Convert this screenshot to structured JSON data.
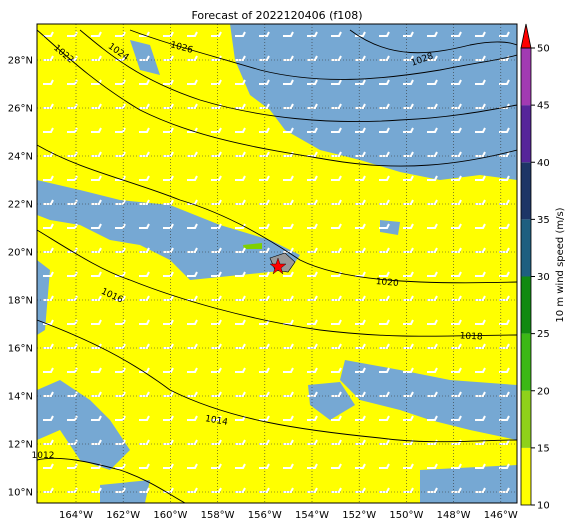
{
  "title": "Forecast of 2022120406 (f108)",
  "x_ticks": [
    "164°W",
    "162°W",
    "160°W",
    "158°W",
    "156°W",
    "154°W",
    "152°W",
    "150°W",
    "148°W",
    "146°W"
  ],
  "y_ticks": [
    "10°N",
    "12°N",
    "14°N",
    "16°N",
    "18°N",
    "20°N",
    "22°N",
    "24°N",
    "26°N",
    "28°N"
  ],
  "colorbar": {
    "label": "10 m wind speed (m/s)",
    "ticks": [
      10,
      15,
      20,
      25,
      30,
      35,
      40,
      45,
      50
    ],
    "colors": [
      "#ffff00",
      "#8fd11a",
      "#3cb816",
      "#118a11",
      "#1e5f80",
      "#1d3566",
      "#56259a",
      "#a23ab2"
    ],
    "extend_color": "#ff0000"
  },
  "isobar_labels": [
    "1022",
    "1024",
    "1026",
    "1028",
    "1020",
    "1018",
    "1016",
    "1014",
    "1012"
  ]
}
